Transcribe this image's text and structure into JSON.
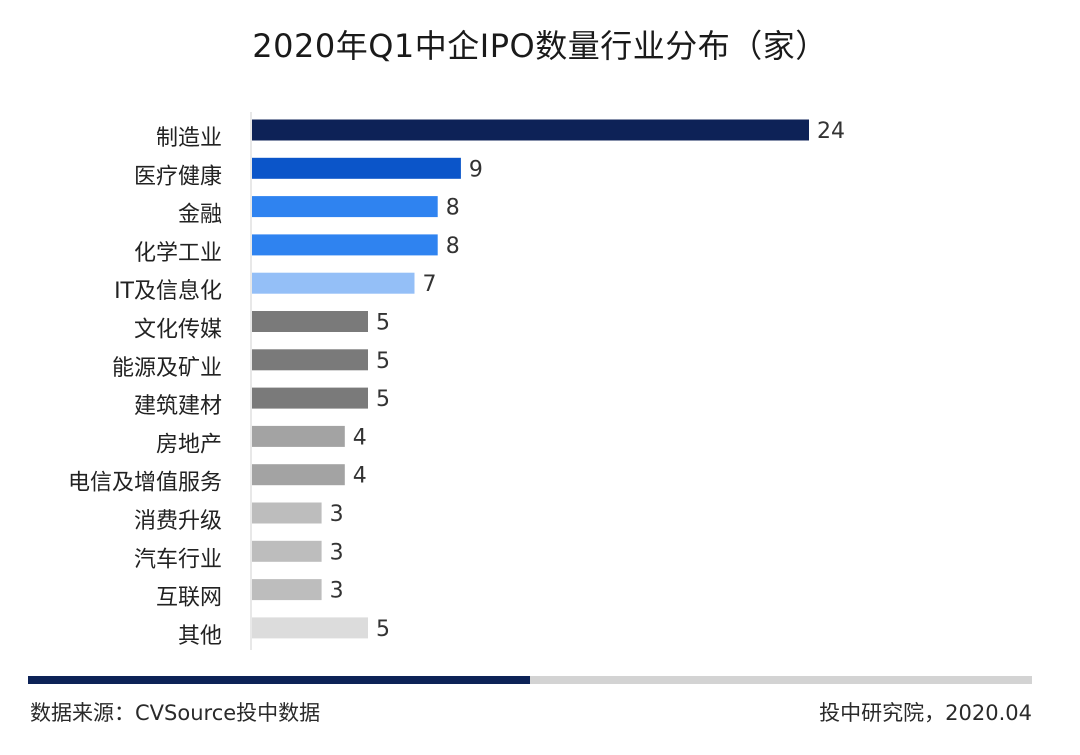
{
  "title": "2020年Q1中企IPO数量行业分布（家）",
  "chart_data": {
    "type": "bar",
    "orientation": "horizontal",
    "title": "2020年Q1中企IPO数量行业分布（家）",
    "xlabel": "",
    "ylabel": "",
    "xlim": [
      0,
      24
    ],
    "grid": false,
    "legend": "none",
    "categories": [
      "制造业",
      "医疗健康",
      "金融",
      "化学工业",
      "IT及信息化",
      "文化传媒",
      "能源及矿业",
      "建筑建材",
      "房地产",
      "电信及增值服务",
      "消费升级",
      "汽车行业",
      "互联网",
      "其他"
    ],
    "values": [
      24,
      9,
      8,
      8,
      7,
      5,
      5,
      5,
      4,
      4,
      3,
      3,
      3,
      5
    ],
    "value_labels": [
      "24",
      "9",
      "8",
      "8",
      "7",
      "5",
      "5",
      "5",
      "4",
      "4",
      "3",
      "3",
      "3",
      "5"
    ],
    "colors": [
      "#0d2257",
      "#0b55c9",
      "#2f83f0",
      "#2f83f0",
      "#94bff7",
      "#7a7a7a",
      "#7a7a7a",
      "#7a7a7a",
      "#a3a3a3",
      "#a3a3a3",
      "#bdbdbd",
      "#bdbdbd",
      "#bdbdbd",
      "#dcdcdc"
    ]
  },
  "footer": {
    "source": "数据来源：CVSource投中数据",
    "credit": "投中研究院，2020.04"
  }
}
